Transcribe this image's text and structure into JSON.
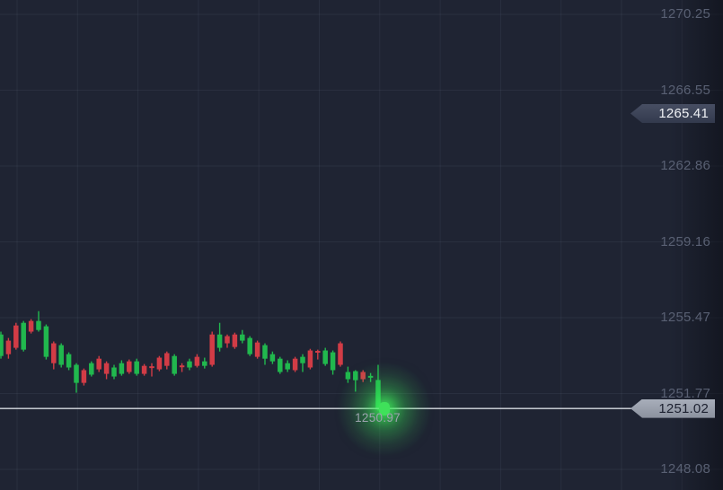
{
  "chart_data": {
    "type": "candlestick",
    "title": "",
    "y_axis": {
      "side": "right",
      "ticks": [
        "1270.25",
        "1266.55",
        "1262.86",
        "1259.16",
        "1255.47",
        "1251.77",
        "1248.08"
      ],
      "ylim": [
        1248.08,
        1270.25
      ]
    },
    "grid": true,
    "price_tags": {
      "upper": {
        "value": "1265.41"
      },
      "current": {
        "value": "1251.02"
      }
    },
    "live_price_label": "1250.97",
    "candles": [
      [
        1253.58,
        1254.77,
        1253.45,
        1254.63,
        "g"
      ],
      [
        1254.33,
        1254.46,
        1253.45,
        1253.67,
        "r"
      ],
      [
        1255.07,
        1255.2,
        1253.89,
        1253.98,
        "r"
      ],
      [
        1253.89,
        1255.29,
        1253.8,
        1255.2,
        "g"
      ],
      [
        1255.29,
        1255.38,
        1254.68,
        1254.77,
        "r"
      ],
      [
        1254.85,
        1255.77,
        1254.77,
        1255.29,
        "g"
      ],
      [
        1253.54,
        1255.12,
        1253.41,
        1255.03,
        "g"
      ],
      [
        1254.2,
        1254.29,
        1252.93,
        1253.23,
        "r"
      ],
      [
        1253.15,
        1254.2,
        1253.02,
        1254.11,
        "g"
      ],
      [
        1253.02,
        1253.76,
        1252.89,
        1253.67,
        "g"
      ],
      [
        1252.27,
        1253.23,
        1251.79,
        1253.15,
        "g"
      ],
      [
        1252.89,
        1252.97,
        1252.14,
        1252.27,
        "r"
      ],
      [
        1252.67,
        1253.32,
        1252.58,
        1253.23,
        "g"
      ],
      [
        1253.45,
        1253.58,
        1252.8,
        1252.93,
        "r"
      ],
      [
        1253.23,
        1253.32,
        1252.45,
        1252.71,
        "r"
      ],
      [
        1252.58,
        1253.15,
        1252.45,
        1253.02,
        "g"
      ],
      [
        1252.71,
        1253.37,
        1252.62,
        1253.23,
        "g"
      ],
      [
        1253.32,
        1253.41,
        1252.71,
        1252.8,
        "r"
      ],
      [
        1252.71,
        1253.45,
        1252.62,
        1253.32,
        "g"
      ],
      [
        1253.1,
        1253.19,
        1252.62,
        1252.71,
        "r"
      ],
      [
        1253.08,
        1253.23,
        1252.58,
        1253.04,
        "r"
      ],
      [
        1253.5,
        1253.58,
        1252.84,
        1252.93,
        "r"
      ],
      [
        1253.72,
        1253.8,
        1252.93,
        1253.1,
        "r"
      ],
      [
        1252.71,
        1253.67,
        1252.62,
        1253.58,
        "g"
      ],
      [
        1253.12,
        1253.23,
        1252.8,
        1253.08,
        "r"
      ],
      [
        1253.02,
        1253.45,
        1252.89,
        1253.32,
        "g"
      ],
      [
        1253.54,
        1253.67,
        1253.02,
        1253.1,
        "r"
      ],
      [
        1253.1,
        1253.5,
        1252.97,
        1253.32,
        "g"
      ],
      [
        1254.63,
        1254.77,
        1253.06,
        1253.15,
        "r"
      ],
      [
        1253.98,
        1255.2,
        1253.8,
        1254.63,
        "g"
      ],
      [
        1254.55,
        1254.63,
        1253.98,
        1254.2,
        "r"
      ],
      [
        1254.63,
        1254.72,
        1253.93,
        1254.02,
        "r"
      ],
      [
        1254.33,
        1254.85,
        1254.2,
        1254.63,
        "g"
      ],
      [
        1253.67,
        1254.55,
        1253.58,
        1254.46,
        "g"
      ],
      [
        1254.24,
        1254.33,
        1253.45,
        1253.54,
        "r"
      ],
      [
        1253.45,
        1254.2,
        1253.15,
        1254.11,
        "g"
      ],
      [
        1253.32,
        1253.8,
        1253.19,
        1253.67,
        "g"
      ],
      [
        1252.8,
        1253.54,
        1252.71,
        1253.45,
        "g"
      ],
      [
        1252.93,
        1253.37,
        1252.8,
        1253.23,
        "g"
      ],
      [
        1253.45,
        1253.54,
        1252.8,
        1252.89,
        "r"
      ],
      [
        1253.23,
        1253.67,
        1252.8,
        1253.54,
        "g"
      ],
      [
        1253.85,
        1253.93,
        1252.93,
        1253.02,
        "r"
      ],
      [
        1253.83,
        1253.89,
        1253.41,
        1253.78,
        "r"
      ],
      [
        1253.19,
        1253.98,
        1253.1,
        1253.85,
        "g"
      ],
      [
        1252.89,
        1253.85,
        1252.67,
        1253.76,
        "g"
      ],
      [
        1254.2,
        1254.29,
        1253.06,
        1253.15,
        "r"
      ],
      [
        1252.45,
        1253.06,
        1252.27,
        1252.8,
        "g"
      ],
      [
        1252.4,
        1252.89,
        1251.84,
        1252.84,
        "g"
      ],
      [
        1252.8,
        1252.89,
        1252.31,
        1252.45,
        "r"
      ],
      [
        1252.56,
        1252.75,
        1252.31,
        1252.61,
        "g"
      ],
      [
        1252.41,
        1253.15,
        1250.92,
        1250.97,
        "g"
      ]
    ],
    "colors": {
      "background": "#1f2433",
      "grid": "rgba(164,178,210,0.08)",
      "candle_up": "#21b84e",
      "candle_down": "#d23c46",
      "live_glow": "#3ef15b",
      "price_line": "#d8dce3",
      "axis_label": "#596073",
      "tag_upper_bg": "#3f4659",
      "tag_upper_text": "#eef0f4",
      "tag_current_bg": "#9aa0ad",
      "tag_current_text": "#1d2130"
    }
  }
}
